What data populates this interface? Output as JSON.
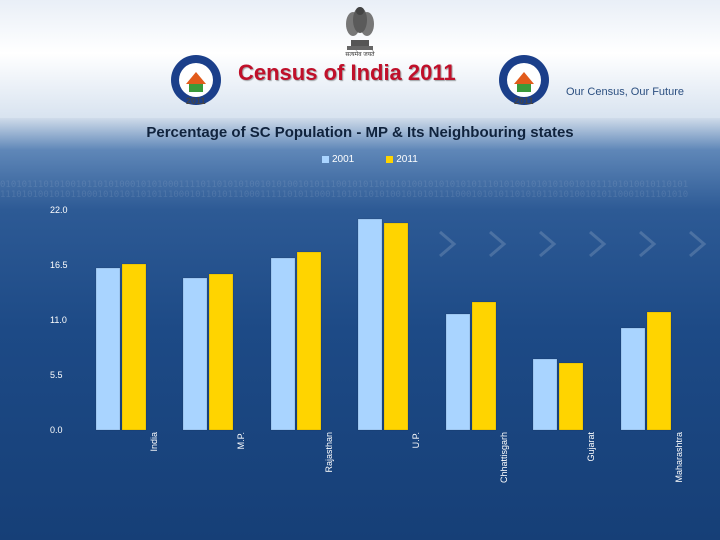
{
  "header": {
    "title": "Census of India  2011",
    "tagline": "Our Census, Our Future",
    "emblem_caption": "सत्यमेव जयते",
    "logo_year": "2011"
  },
  "colors": {
    "series_2001": "#a9d4ff",
    "series_2011": "#ffd400",
    "title_red": "#c0102a"
  },
  "chart_data": {
    "type": "bar",
    "title": "Percentage of SC Population - MP & Its Neighbouring states",
    "xlabel": "",
    "ylabel": "",
    "categories": [
      "India",
      "M.P.",
      "Rajasthan",
      "U.P.",
      "Chhattisgarh",
      "Gujarat",
      "Maharashtra"
    ],
    "series": [
      {
        "name": "2001",
        "values": [
          16.2,
          15.2,
          17.2,
          21.1,
          11.6,
          7.1,
          10.2
        ]
      },
      {
        "name": "2011",
        "values": [
          16.6,
          15.6,
          17.8,
          20.7,
          12.8,
          6.7,
          11.8
        ]
      }
    ],
    "ylim": [
      0,
      22
    ],
    "yticks": [
      "0.0",
      "5.5",
      "11.0",
      "16.5",
      "22.0"
    ],
    "legend_position": "top-center",
    "grid": false
  }
}
